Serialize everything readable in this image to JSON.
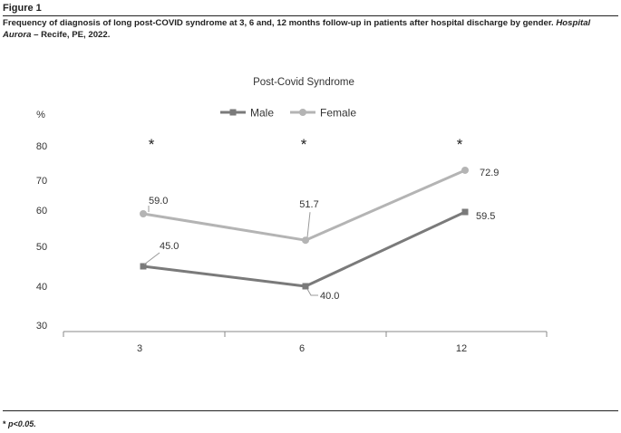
{
  "figure": {
    "label": "Figure 1",
    "caption_main": "Frequency of diagnosis of long post-COVID syndrome at 3, 6 and, 12 months follow-up in patients after hospital discharge by gender.",
    "caption_italic": "Hospital Aurora",
    "caption_tail": "– Recife, PE, 2022.",
    "footnote_star": "*",
    "footnote_text": "p<0.05."
  },
  "chart_data": {
    "type": "line",
    "title": "Post-Covid Syndrome",
    "ylabel": "%",
    "xlabel": "",
    "categories": [
      "3",
      "6",
      "12"
    ],
    "y_ticks": [
      "80",
      "70",
      "60",
      "50",
      "40",
      "30"
    ],
    "ylim": [
      30,
      85
    ],
    "grid": false,
    "legend_position": "top-center",
    "significance_markers": [
      "*",
      "*",
      "*"
    ],
    "series": [
      {
        "name": "Male",
        "values": [
          45.0,
          40.0,
          59.5
        ],
        "labels": [
          "45.0",
          "40.0",
          "59.5"
        ],
        "color": "#7a7a7a"
      },
      {
        "name": "Female",
        "values": [
          59.0,
          51.7,
          72.9
        ],
        "labels": [
          "59.0",
          "51.7",
          "72.9"
        ],
        "color": "#b4b4b4"
      }
    ]
  }
}
